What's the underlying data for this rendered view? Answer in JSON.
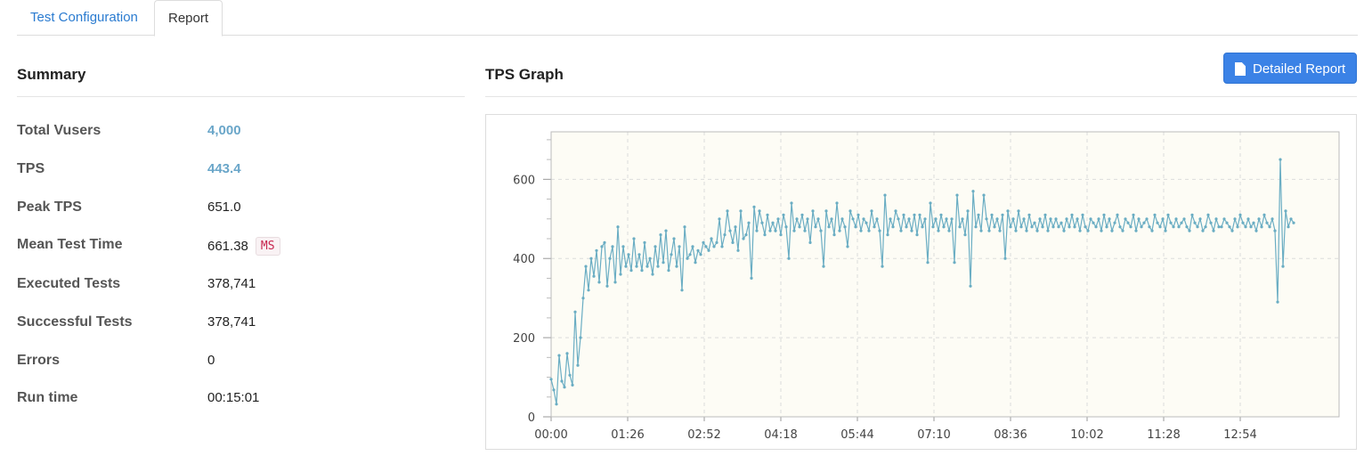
{
  "tabs": [
    {
      "label": "Test Configuration",
      "active": false
    },
    {
      "label": "Report",
      "active": true
    }
  ],
  "summary": {
    "title": "Summary",
    "rows": [
      {
        "label": "Total Vusers",
        "value": "4,000"
      },
      {
        "label": "TPS",
        "value": "443.4"
      },
      {
        "label": "Peak TPS",
        "value": "651.0"
      },
      {
        "label": "Mean Test Time",
        "value": "661.38",
        "unit": "MS"
      },
      {
        "label": "Executed Tests",
        "value": "378,741"
      },
      {
        "label": "Successful Tests",
        "value": "378,741"
      },
      {
        "label": "Errors",
        "value": "0"
      },
      {
        "label": "Run time",
        "value": "00:15:01"
      }
    ]
  },
  "graph": {
    "title": "TPS Graph",
    "detailed_report_label": "Detailed Report",
    "button_icon": "document-icon"
  },
  "chart_data": {
    "type": "line",
    "title": "",
    "xlabel": "",
    "ylabel": "",
    "x_tick_labels": [
      "00:00",
      "01:26",
      "02:52",
      "04:18",
      "05:44",
      "07:10",
      "08:36",
      "10:02",
      "11:28",
      "12:54"
    ],
    "y_ticks": [
      0,
      200,
      400,
      600
    ],
    "ylim": [
      0,
      720
    ],
    "xlim_seconds": [
      0,
      885
    ],
    "grid": true,
    "series": [
      {
        "name": "",
        "color": "#6aadc3",
        "sample_interval_seconds": 3,
        "values": [
          95,
          68,
          32,
          155,
          90,
          75,
          160,
          105,
          80,
          265,
          130,
          200,
          300,
          380,
          320,
          400,
          355,
          420,
          340,
          430,
          440,
          330,
          400,
          430,
          340,
          480,
          360,
          430,
          380,
          410,
          370,
          450,
          380,
          410,
          370,
          440,
          380,
          400,
          360,
          430,
          380,
          460,
          390,
          470,
          370,
          410,
          450,
          380,
          430,
          320,
          480,
          400,
          410,
          430,
          390,
          420,
          410,
          440,
          430,
          420,
          450,
          430,
          440,
          500,
          430,
          460,
          520,
          470,
          440,
          480,
          420,
          520,
          450,
          460,
          490,
          350,
          530,
          470,
          520,
          490,
          460,
          510,
          470,
          490,
          470,
          500,
          460,
          510,
          480,
          400,
          540,
          470,
          500,
          480,
          510,
          470,
          500,
          440,
          520,
          480,
          500,
          470,
          380,
          520,
          480,
          500,
          460,
          540,
          470,
          500,
          480,
          430,
          520,
          500,
          480,
          510,
          470,
          500,
          490,
          470,
          520,
          480,
          500,
          470,
          380,
          560,
          460,
          500,
          480,
          520,
          500,
          470,
          510,
          480,
          500,
          470,
          510,
          460,
          510,
          480,
          500,
          390,
          540,
          480,
          500,
          470,
          510,
          480,
          500,
          470,
          500,
          390,
          560,
          480,
          500,
          460,
          520,
          330,
          570,
          480,
          510,
          470,
          560,
          500,
          470,
          510,
          480,
          500,
          470,
          510,
          400,
          520,
          480,
          500,
          470,
          520,
          480,
          500,
          470,
          510,
          480,
          490,
          470,
          500,
          480,
          510,
          470,
          500,
          480,
          500,
          480,
          490,
          470,
          500,
          480,
          510,
          480,
          500,
          470,
          510,
          480,
          470,
          500,
          490,
          480,
          500,
          470,
          510,
          480,
          500,
          470,
          490,
          510,
          480,
          470,
          500,
          490,
          480,
          510,
          470,
          500,
          480,
          490,
          500,
          480,
          470,
          510,
          490,
          480,
          500,
          470,
          510,
          490,
          480,
          500,
          480,
          490,
          500,
          480,
          470,
          510,
          490,
          480,
          500,
          470,
          480,
          510,
          490,
          470,
          500,
          480,
          480,
          500,
          490,
          480,
          470,
          500,
          480,
          510,
          490,
          480,
          500,
          480,
          490,
          470,
          500,
          480,
          510,
          490,
          480,
          500,
          470,
          290,
          650,
          380,
          520,
          480,
          500,
          490
        ]
      }
    ]
  }
}
